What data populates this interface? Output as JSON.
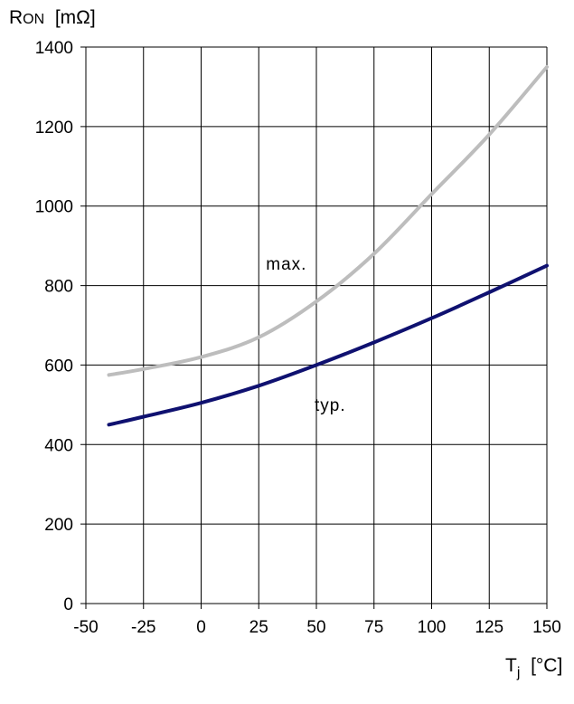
{
  "chart_data": {
    "type": "line",
    "title": "",
    "ylabel": {
      "main": "R",
      "sub": "ON",
      "unit": "[mΩ]"
    },
    "xlabel": {
      "main": "T",
      "sub": "j",
      "unit": "[°C]"
    },
    "xlim": [
      -50,
      150
    ],
    "ylim": [
      0,
      1400
    ],
    "xticks": [
      -50,
      -25,
      0,
      25,
      50,
      75,
      100,
      125,
      150
    ],
    "yticks": [
      0,
      200,
      400,
      600,
      800,
      1000,
      1200,
      1400
    ],
    "grid": true,
    "series": [
      {
        "name": "max.",
        "color": "#bdbdbd",
        "x": [
          -40,
          -25,
          0,
          25,
          50,
          75,
          100,
          125,
          150
        ],
        "y": [
          575,
          590,
          620,
          670,
          760,
          880,
          1030,
          1180,
          1350
        ]
      },
      {
        "name": "typ.",
        "color": "#0f1170",
        "x": [
          -40,
          -25,
          0,
          25,
          50,
          75,
          100,
          125,
          150
        ],
        "y": [
          450,
          470,
          505,
          548,
          600,
          657,
          718,
          783,
          850
        ]
      }
    ],
    "annotations": [
      {
        "text": "max.",
        "series": "max.",
        "x": 37,
        "y": 840
      },
      {
        "text": "typ.",
        "series": "typ.",
        "x": 56,
        "y": 485
      }
    ]
  }
}
